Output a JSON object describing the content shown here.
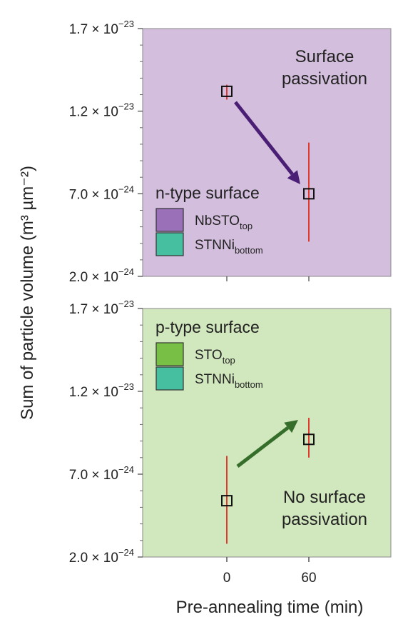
{
  "chart_data": [
    {
      "type": "scatter",
      "panel": "top",
      "background_color": "#d3bfdd",
      "arrow_color": "#4b1e75",
      "x_tick_labels": [
        "0",
        "60"
      ],
      "xlabel": "Pre-annealing time (min)",
      "ylabel": "Sum of particle volume (m³ µm⁻²)",
      "ylim": [
        2e-24,
        1.7e-23
      ],
      "y_ticks": [
        {
          "value": 1.7e-23,
          "mantissa": "1.7",
          "exp": "−23"
        },
        {
          "value": 1.2e-23,
          "mantissa": "1.2",
          "exp": "−23"
        },
        {
          "value": 7e-24,
          "mantissa": "7.0",
          "exp": "−24"
        },
        {
          "value": 2e-24,
          "mantissa": "2.0",
          "exp": "−24"
        }
      ],
      "points": [
        {
          "x": 0,
          "y": 1.32e-23,
          "err_low": 1.27e-23,
          "err_high": 1.36e-23
        },
        {
          "x": 60,
          "y": 7e-24,
          "err_low": 4.1e-24,
          "err_high": 1.01e-23
        }
      ],
      "annotation_lines": [
        "Surface",
        "passivation"
      ],
      "legend": {
        "title": "n-type surface",
        "items": [
          {
            "label": "NbSTO",
            "sub": "top",
            "color": "#9a70b8"
          },
          {
            "label": "STNNi",
            "sub": "bottom",
            "color": "#45bfa0"
          }
        ]
      }
    },
    {
      "type": "scatter",
      "panel": "bottom",
      "background_color": "#d1e7bd",
      "arrow_color": "#356e2a",
      "ylim": [
        2e-24,
        1.7e-23
      ],
      "y_ticks": [
        {
          "value": 1.7e-23,
          "mantissa": "1.7",
          "exp": "−23"
        },
        {
          "value": 1.2e-23,
          "mantissa": "1.2",
          "exp": "−23"
        },
        {
          "value": 7e-24,
          "mantissa": "7.0",
          "exp": "−24"
        },
        {
          "value": 2e-24,
          "mantissa": "2.0",
          "exp": "−24"
        }
      ],
      "points": [
        {
          "x": 0,
          "y": 5.4e-24,
          "err_low": 2.8e-24,
          "err_high": 8.1e-24
        },
        {
          "x": 60,
          "y": 9.1e-24,
          "err_low": 8e-24,
          "err_high": 1.04e-23
        }
      ],
      "annotation_lines": [
        "No surface",
        "passivation"
      ],
      "legend": {
        "title": "p-type surface",
        "items": [
          {
            "label": "STO",
            "sub": "top",
            "color": "#78c045"
          },
          {
            "label": "STNNi",
            "sub": "bottom",
            "color": "#45bfa0"
          }
        ]
      }
    }
  ]
}
